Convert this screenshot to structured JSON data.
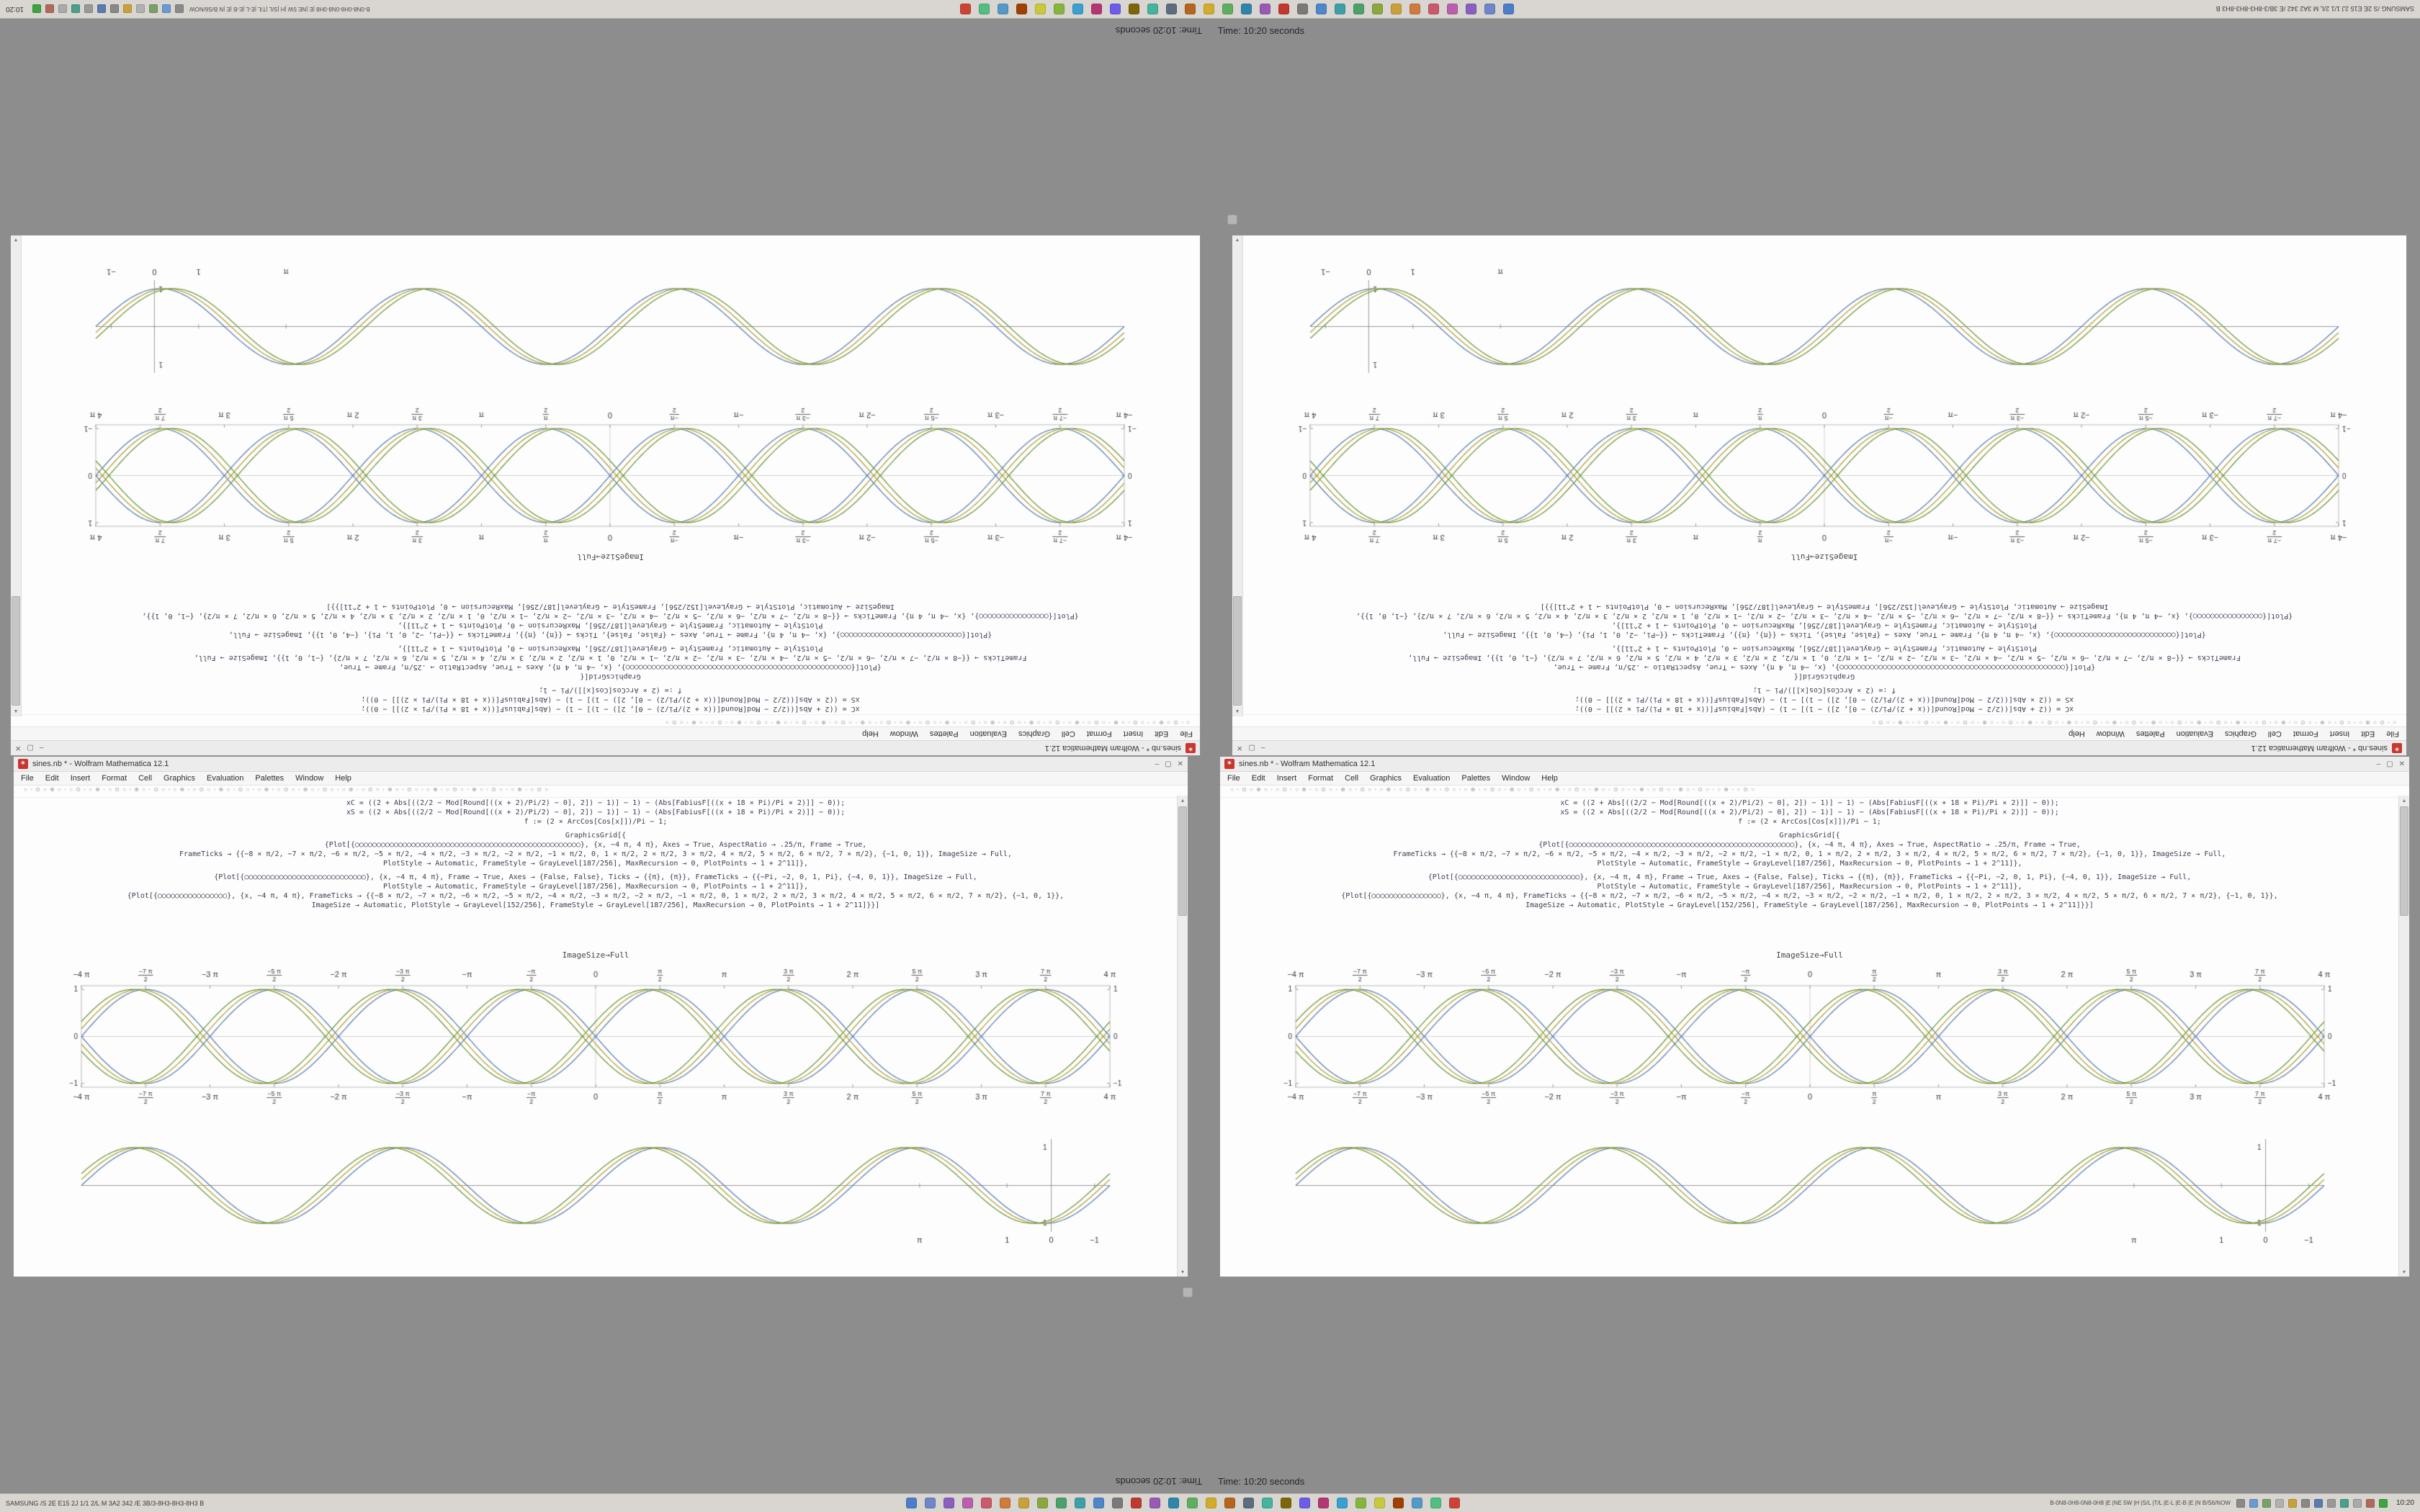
{
  "meta": {
    "app": "Wolfram Mathematica",
    "version": "12.1"
  },
  "desktop": {
    "background": "#8d8d8d",
    "status_text": "Time: 10:20 seconds",
    "window": {
      "title": "sines.nb * - Wolfram Mathematica 12.1",
      "icon": "✶",
      "buttons": {
        "minimize": "–",
        "maximize": "▢",
        "close": "✕"
      },
      "menu_items": [
        "File",
        "Edit",
        "Insert",
        "Format",
        "Cell",
        "Graphics",
        "Evaluation",
        "Palettes",
        "Window",
        "Help"
      ],
      "toolbar_glyphs": "○ ◦ ⊙ ○ ⊕ ○ ◦ ○ ⊙ ◦ ○ ⊕ ◦ ○ ⊙ ○ ◦ ⊕ ○ ◦ ⊙ ○ ◦ ○ ⊕ ◦ ○ ⊙ ○ ◦ ⊕ ○ ◦ ⊙ ○ ◦ ○ ⊕ ◦ ○ ⊙ ○ ◦ ⊕ ○ ◦ ⊙ ○ ◦ ○ ⊕ ◦ ○ ⊙ ○ ◦ ⊕ ○ ◦ ⊙ ○ ◦ ○ ⊕ ◦ ○ ⊙ ○ ◦ ⊕ ○ ◦ ⊙ ○ ◦ ○ ⊕ ◦ ○ ⊙ ○",
      "scroll_up_glyph": "▴",
      "scroll_down_glyph": "▾",
      "cells": {
        "block1": [
          "xC = ((2 + Abs[((2/2 − Mod[Round[((x + 2)/Pi/2) − 0], 2]) − 1)] − 1) − (Abs[FabiusF[((x + 18 × Pi)/Pi × 2)]] − 0));",
          "xS = ((2 × Abs[((2/2 − Mod[Round[((x + 2)/Pi/2) − 0], 2]) − 1)] − 1) − (Abs[FabiusF[((x + 18 × Pi)/Pi × 2)]] − 0));",
          "f := (2 × ArcCos[Cos[x]])/Pi − 1;"
        ],
        "block2": [
          "GraphicsGrid[{",
          "{Plot[{○○○○○○○○○○○○○○○○○○○○○○○○○○○○○○○○○○○○○○○○○○○○○○○○○○○○}, {x, −4 π, 4 π}, Axes → True, AspectRatio → .25/π, Frame → True,",
          "FrameTicks → {{−8 × π/2, −7 × π/2, −6 × π/2, −5 × π/2, −4 × π/2, −3 × π/2, −2 × π/2, −1 × π/2, 0, 1 × π/2, 2 × π/2, 3 × π/2, 4 × π/2, 5 × π/2, 6 × π/2, 7 × π/2}, {−1, 0, 1}}, ImageSize → Full,",
          "PlotStyle → Automatic, FrameStyle → GrayLevel[187/256], MaxRecursion → 0, PlotPoints → 1 + 2^11]},"
        ],
        "block3": [
          "{Plot[{○○○○○○○○○○○○○○○○○○○○○○○○○○○○}, {x, −4 π, 4 π}, Frame → True, Axes → {False, False}, Ticks → {{π}, {π}}, FrameTicks → {{−Pi, −2, 0, 1, Pi}, {−4, 0, 1}}, ImageSize → Full,",
          "PlotStyle → Automatic, FrameStyle → GrayLevel[187/256], MaxRecursion → 0, PlotPoints → 1 + 2^11]},",
          "{Plot[{○○○○○○○○○○○○○○○○}, {x, −4 π, 4 π}, FrameTicks → {{−8 × π/2, −7 × π/2, −6 × π/2, −5 × π/2, −4 × π/2, −3 × π/2, −2 × π/2, −1 × π/2, 0, 1 × π/2, 2 × π/2, 3 × π/2, 4 × π/2, 5 × π/2, 6 × π/2, 7 × π/2}, {−1, 0, 1}},",
          "ImageSize → Automatic, PlotStyle → GrayLevel[152/256], FrameStyle → GrayLevel[187/256], MaxRecursion → 0, PlotPoints → 1 + 2^11]}}]"
        ],
        "imagesize_label": "ImageSize→Full"
      }
    },
    "taskbar": {
      "left_text": "SAMSUNG /S 2E E15 2J 1/1 2/L M 3A2 342 /E 3B/3-8H3-8H3-8H3 B",
      "tray_text": "B-0N8-0H8-0N8-0H8 |E |NE 5W |H |S/L |T/L |E-L |E-B |E |N B/S6/NOW",
      "clock": "10:20",
      "app_icons": [
        "#4d7cc9",
        "#6f86c9",
        "#8a5fc0",
        "#b95fae",
        "#c9596b",
        "#d07a3e",
        "#c9a13a",
        "#8aa83e",
        "#4da06a",
        "#3e9fa8",
        "#4d86c9",
        "#7a7a7a",
        "#c0392f",
        "#9b59b6",
        "#2e86ab",
        "#5fae5f",
        "#d4ac2b",
        "#b5651d",
        "#5d6d7e",
        "#45b39d",
        "#7d6608",
        "#6c5ce7",
        "#b33771",
        "#3aa0d0",
        "#86b53e",
        "#c9c93e",
        "#a04000",
        "#5499c7",
        "#52be80",
        "#cb4335"
      ],
      "tray_icons": [
        "#8a8a8a",
        "#6a9ad0",
        "#7aa06a",
        "#b0b0b0",
        "#c9a13a",
        "#888888",
        "#5a7ab0",
        "#999999",
        "#4aa08a",
        "#aaaaaa",
        "#b06a5a",
        "#3da53d"
      ]
    }
  },
  "chart_data": [
    {
      "id": "framed-braided-sine-plot",
      "type": "line",
      "title": "",
      "xlabel": "",
      "ylabel": "",
      "frame": true,
      "frame_color": "#bcbcbc",
      "x_range": [
        -12.566,
        12.566
      ],
      "y_range": [
        -1.08,
        1.08
      ],
      "legend": "none",
      "series": [
        {
          "name": "sin(x)",
          "fn": "sin",
          "sign": 1,
          "phase": 0,
          "color": "#5e81b5"
        },
        {
          "name": "sin(x + 0.16)",
          "fn": "sin",
          "sign": 1,
          "phase": 0.16,
          "color": "#b3a135"
        },
        {
          "name": "sin(x + 0.32)",
          "fn": "sin",
          "sign": 1,
          "phase": 0.32,
          "color": "#6f9a3d"
        },
        {
          "name": "−sin(x)",
          "fn": "sin",
          "sign": -1,
          "phase": 0,
          "color": "#5e81b5"
        },
        {
          "name": "−sin(x + 0.16)",
          "fn": "sin",
          "sign": -1,
          "phase": 0.16,
          "color": "#b3a135"
        },
        {
          "name": "−sin(x + 0.32)",
          "fn": "sin",
          "sign": -1,
          "phase": 0.32,
          "color": "#6f9a3d"
        }
      ],
      "x_ticks": [
        {
          "x": -12.566,
          "label": "−4 π"
        },
        {
          "x": -10.996,
          "label": "−7 π|2"
        },
        {
          "x": -9.425,
          "label": "−3 π"
        },
        {
          "x": -7.854,
          "label": "−5 π|2"
        },
        {
          "x": -6.283,
          "label": "−2 π"
        },
        {
          "x": -4.712,
          "label": "−3 π|2"
        },
        {
          "x": -3.142,
          "label": "−π"
        },
        {
          "x": -1.571,
          "label": "−π|2"
        },
        {
          "x": 0,
          "label": "0"
        },
        {
          "x": 1.571,
          "label": "π|2"
        },
        {
          "x": 3.142,
          "label": "π"
        },
        {
          "x": 4.712,
          "label": "3 π|2"
        },
        {
          "x": 6.283,
          "label": "2 π"
        },
        {
          "x": 7.854,
          "label": "5 π|2"
        },
        {
          "x": 9.425,
          "label": "3 π"
        },
        {
          "x": 10.996,
          "label": "7 π|2"
        },
        {
          "x": 12.566,
          "label": "4 π"
        }
      ],
      "y_ticks": [
        {
          "y": -1,
          "label": "−1"
        },
        {
          "y": 0,
          "label": "0"
        },
        {
          "y": 1,
          "label": "1"
        }
      ]
    },
    {
      "id": "axes-sine-plot",
      "type": "line",
      "title": "",
      "xlabel": "",
      "ylabel": "",
      "frame": false,
      "x_range": [
        -12.566,
        12.566
      ],
      "y_range": [
        -1.15,
        1.15
      ],
      "origin_pos": 0.943,
      "legend": "none",
      "series": [
        {
          "name": "sin(x)",
          "fn": "sin",
          "sign": 1,
          "phase": 0,
          "color": "#5e81b5"
        },
        {
          "name": "sin(x + 0.16)",
          "fn": "sin",
          "sign": 1,
          "phase": 0.16,
          "color": "#b3a135"
        },
        {
          "name": "sin(x + 0.32)",
          "fn": "sin",
          "sign": 1,
          "phase": 0.32,
          "color": "#6f9a3d"
        }
      ],
      "x_ticks": [
        {
          "pos": 0.815,
          "label": "π"
        },
        {
          "pos": 0.9,
          "label": "1"
        },
        {
          "pos": 0.943,
          "label": "0"
        },
        {
          "pos": 0.985,
          "label": "−1"
        }
      ],
      "y_ticks": [
        {
          "y": 1,
          "label": "1"
        },
        {
          "y": -1,
          "label": "−1"
        }
      ]
    }
  ]
}
